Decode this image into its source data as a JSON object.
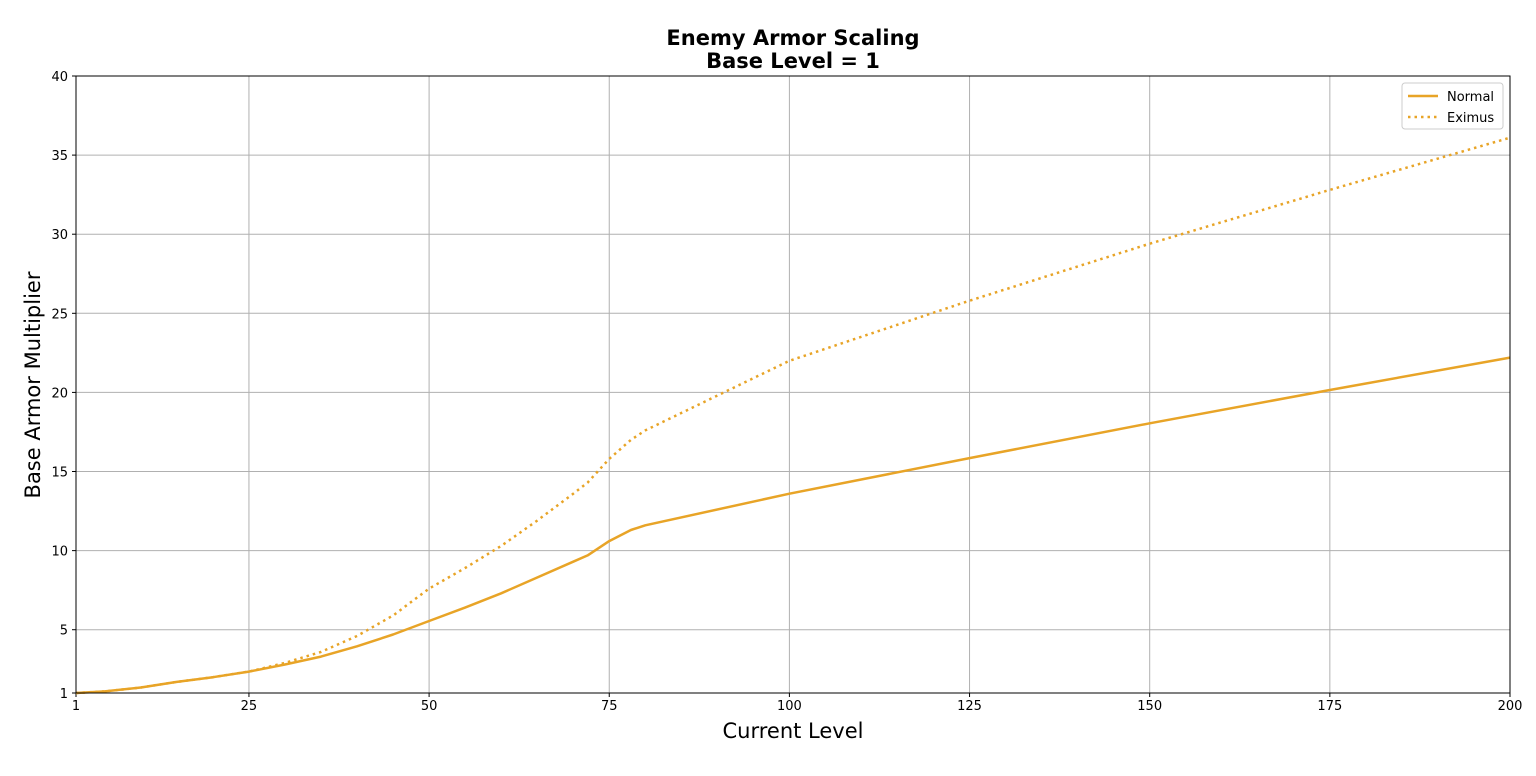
{
  "chart_data": {
    "type": "line",
    "title": "Enemy Armor Scaling",
    "subtitle": "Base Level = 1",
    "xlabel": "Current Level",
    "ylabel": "Base Armor Multiplier",
    "xlim": [
      1,
      200
    ],
    "ylim": [
      1,
      40
    ],
    "xticks": [
      1,
      25,
      50,
      75,
      100,
      125,
      150,
      175,
      200
    ],
    "yticks": [
      1,
      5,
      10,
      15,
      20,
      25,
      30,
      35,
      40
    ],
    "grid": true,
    "legend_position": "top-right",
    "series": [
      {
        "name": "Normal",
        "style": "solid",
        "color": "#E8A427",
        "x": [
          1,
          5,
          10,
          15,
          20,
          25,
          30,
          35,
          40,
          45,
          50,
          55,
          60,
          65,
          70,
          72,
          75,
          78,
          80,
          100,
          125,
          150,
          175,
          200
        ],
        "y": [
          1,
          1.1,
          1.35,
          1.7,
          2.0,
          2.35,
          2.8,
          3.3,
          3.95,
          4.7,
          5.55,
          6.4,
          7.3,
          8.3,
          9.3,
          9.7,
          10.6,
          11.3,
          11.6,
          13.6,
          15.85,
          18.05,
          20.15,
          22.2
        ]
      },
      {
        "name": "Eximus",
        "style": "dotted",
        "color": "#E8A427",
        "x": [
          1,
          5,
          10,
          15,
          20,
          25,
          30,
          35,
          40,
          45,
          50,
          55,
          60,
          65,
          70,
          72,
          75,
          78,
          80,
          90,
          100,
          125,
          150,
          175,
          200
        ],
        "y": [
          1,
          1.1,
          1.35,
          1.7,
          2.0,
          2.35,
          2.9,
          3.6,
          4.6,
          5.9,
          7.6,
          8.9,
          10.3,
          11.9,
          13.6,
          14.3,
          15.8,
          17.0,
          17.6,
          19.8,
          22.0,
          25.8,
          29.4,
          32.8,
          36.1
        ]
      }
    ]
  }
}
